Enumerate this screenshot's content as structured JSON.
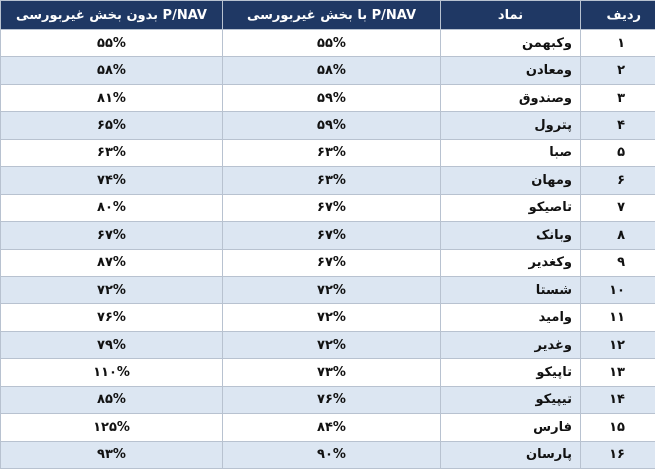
{
  "table": {
    "header": [
      "ردیف",
      "نماد",
      "P/NAV با بخش غیربورسی",
      "P/NAV بدون بخش غیربورسی"
    ],
    "rows": [
      [
        "۱",
        "وکبهمن",
        "۵۵%",
        "۵۵%"
      ],
      [
        "۲",
        "ومعادن",
        "۵۸%",
        "۵۸%"
      ],
      [
        "۳",
        "وصندوق",
        "۵۹%",
        "۸۱%"
      ],
      [
        "۴",
        "پترول",
        "۵۹%",
        "۶۵%"
      ],
      [
        "۵",
        "صبا",
        "۶۳%",
        "۶۳%"
      ],
      [
        "۶",
        "ومهان",
        "۶۳%",
        "۷۴%"
      ],
      [
        "۷",
        "تاصیکو",
        "۶۷%",
        "۸۰%"
      ],
      [
        "۸",
        "وبانک",
        "۶۷%",
        "۶۷%"
      ],
      [
        "۹",
        "وکغدیر",
        "۶۷%",
        "۸۷%"
      ],
      [
        "۱۰",
        "شستا",
        "۷۲%",
        "۷۲%"
      ],
      [
        "۱۱",
        "وامید",
        "۷۲%",
        "۷۶%"
      ],
      [
        "۱۲",
        "وغدیر",
        "۷۲%",
        "۷۹%"
      ],
      [
        "۱۳",
        "تاپیکو",
        "۷۳%",
        "۱۱۰%"
      ],
      [
        "۱۴",
        "تیپیکو",
        "۷۶%",
        "۸۵%"
      ],
      [
        "۱۵",
        "فارس",
        "۸۴%",
        "۱۲۵%"
      ],
      [
        "۱۶",
        "پارسان",
        "۹۰%",
        "۹۳%"
      ]
    ]
  }
}
